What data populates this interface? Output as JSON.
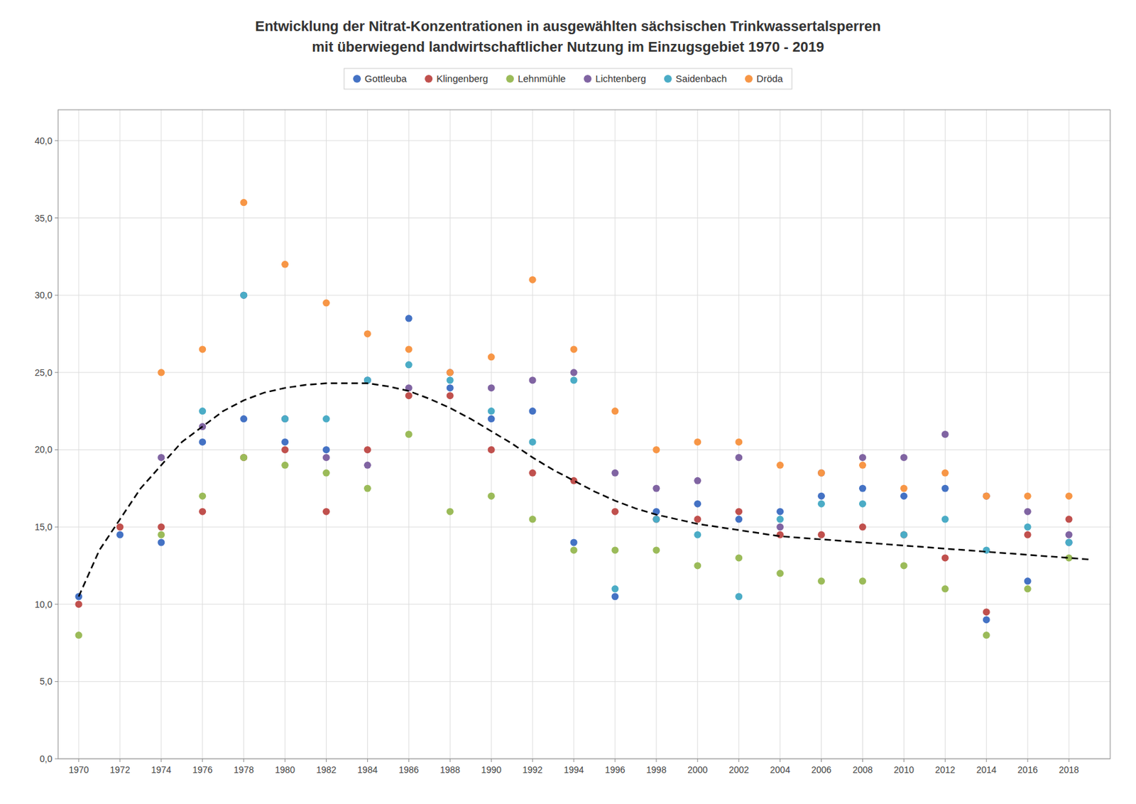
{
  "chart_data": {
    "type": "scatter",
    "title": "Entwicklung der Nitrat-Konzentrationen in ausgewählten sächsischen Trinkwassertalsperren",
    "subtitle": "mit überwiegend landwirtschaftlicher Nutzung im Einzugsgebiet 1970 - 2019",
    "xlim": [
      1969,
      2020
    ],
    "ylim": [
      0,
      42
    ],
    "xticks": [
      1970,
      1972,
      1974,
      1976,
      1978,
      1980,
      1982,
      1984,
      1986,
      1988,
      1990,
      1992,
      1994,
      1996,
      1998,
      2000,
      2002,
      2004,
      2006,
      2008,
      2010,
      2012,
      2014,
      2016,
      2018
    ],
    "yticks": [
      {
        "value": 0.0,
        "label": "0,0"
      },
      {
        "value": 5.0,
        "label": "5,0"
      },
      {
        "value": 10.0,
        "label": "10,0"
      },
      {
        "value": 15.0,
        "label": "15,0"
      },
      {
        "value": 20.0,
        "label": "20,0"
      },
      {
        "value": 25.0,
        "label": "25,0"
      },
      {
        "value": 30.0,
        "label": "30,0"
      },
      {
        "value": 35.0,
        "label": "35,0"
      },
      {
        "value": 40.0,
        "label": "40,0"
      }
    ],
    "grid": true,
    "legend": "top",
    "series": [
      {
        "name": "Gottleuba",
        "color": "#4472c4",
        "marker": "circle",
        "x": [
          1970,
          1972,
          1974,
          1976,
          1978,
          1980,
          1982,
          1984,
          1986,
          1988,
          1990,
          1992,
          1994,
          1996,
          1998,
          2000,
          2002,
          2004,
          2006,
          2008,
          2010,
          2012,
          2014,
          2016,
          2018
        ],
        "values": [
          10.5,
          14.5,
          14.0,
          20.5,
          22.0,
          20.5,
          20.0,
          24.5,
          28.5,
          24.0,
          22.0,
          22.5,
          14.0,
          10.5,
          16.0,
          16.5,
          15.5,
          16.0,
          17.0,
          17.5,
          17.0,
          17.5,
          9.0,
          11.5,
          14.0
        ]
      },
      {
        "name": "Klingenberg",
        "color": "#c0504d",
        "marker": "circle",
        "x": [
          1970,
          1972,
          1974,
          1976,
          1978,
          1980,
          1982,
          1984,
          1986,
          1988,
          1990,
          1992,
          1994,
          1996,
          1998,
          2000,
          2002,
          2004,
          2006,
          2008,
          2010,
          2012,
          2014,
          2016,
          2018
        ],
        "values": [
          10.0,
          15.0,
          15.0,
          16.0,
          19.5,
          20.0,
          16.0,
          20.0,
          23.5,
          23.5,
          20.0,
          18.5,
          18.0,
          16.0,
          15.5,
          15.5,
          16.0,
          14.5,
          14.5,
          15.0,
          14.5,
          13.0,
          9.5,
          14.5,
          15.5
        ]
      },
      {
        "name": "Lehnmühle",
        "color": "#9bbb59",
        "marker": "circle",
        "x": [
          1970,
          1974,
          1976,
          1978,
          1980,
          1982,
          1984,
          1986,
          1988,
          1990,
          1992,
          1994,
          1996,
          1998,
          2000,
          2002,
          2004,
          2006,
          2008,
          2010,
          2012,
          2014,
          2016,
          2018
        ],
        "values": [
          8.0,
          14.5,
          17.0,
          19.5,
          19.0,
          18.5,
          17.5,
          21.0,
          16.0,
          17.0,
          15.5,
          13.5,
          13.5,
          13.5,
          12.5,
          13.0,
          12.0,
          11.5,
          11.5,
          12.5,
          11.0,
          8.0,
          11.0,
          13.0
        ]
      },
      {
        "name": "Lichtenberg",
        "color": "#8064a2",
        "marker": "circle",
        "x": [
          1974,
          1976,
          1978,
          1980,
          1982,
          1984,
          1986,
          1988,
          1990,
          1992,
          1994,
          1996,
          1998,
          2000,
          2002,
          2004,
          2006,
          2008,
          2010,
          2012,
          2014,
          2016,
          2018
        ],
        "values": [
          19.5,
          21.5,
          30.0,
          22.0,
          19.5,
          19.0,
          24.0,
          25.0,
          24.0,
          24.5,
          25.0,
          18.5,
          17.5,
          18.0,
          19.5,
          15.0,
          18.5,
          19.5,
          19.5,
          21.0,
          17.0,
          16.0,
          14.5
        ]
      },
      {
        "name": "Saidenbach",
        "color": "#4bacc6",
        "marker": "circle",
        "x": [
          1976,
          1978,
          1980,
          1982,
          1984,
          1986,
          1988,
          1990,
          1992,
          1994,
          1996,
          1998,
          2000,
          2002,
          2004,
          2006,
          2008,
          2010,
          2012,
          2014,
          2016,
          2018
        ],
        "values": [
          22.5,
          30.0,
          22.0,
          22.0,
          24.5,
          25.5,
          24.5,
          22.5,
          20.5,
          24.5,
          11.0,
          15.5,
          14.5,
          10.5,
          15.5,
          16.5,
          16.5,
          14.5,
          15.5,
          13.5,
          15.0,
          14.0
        ]
      },
      {
        "name": "Dröda",
        "color": "#f79646",
        "marker": "circle",
        "x": [
          1974,
          1976,
          1978,
          1980,
          1982,
          1984,
          1986,
          1988,
          1990,
          1992,
          1994,
          1996,
          1998,
          2000,
          2002,
          2004,
          2006,
          2008,
          2010,
          2012,
          2014,
          2016,
          2018
        ],
        "values": [
          25.0,
          26.5,
          36.0,
          32.0,
          29.5,
          27.5,
          26.5,
          25.0,
          26.0,
          31.0,
          26.5,
          22.5,
          20.0,
          20.5,
          20.5,
          19.0,
          18.5,
          19.0,
          17.5,
          18.5,
          17.0,
          17.0,
          17.0
        ]
      },
      {
        "type": "line",
        "color": "#000000",
        "line_style": "dashed",
        "x": [
          1970,
          1971,
          1972,
          1973,
          1974,
          1975,
          1976,
          1977,
          1978,
          1979,
          1980,
          1981,
          1982,
          1983,
          1984,
          1985,
          1986,
          1987,
          1988,
          1989,
          1990,
          1991,
          1992,
          1993,
          1994,
          1995,
          1996,
          1997,
          1998,
          1999,
          2000,
          2001,
          2002,
          2003,
          2004,
          2005,
          2006,
          2007,
          2008,
          2009,
          2010,
          2011,
          2012,
          2013,
          2014,
          2015,
          2016,
          2017,
          2018,
          2019
        ],
        "values": [
          10.5,
          13.5,
          15.5,
          17.5,
          19.0,
          20.5,
          21.5,
          22.5,
          23.2,
          23.7,
          24.0,
          24.2,
          24.3,
          24.3,
          24.3,
          24.1,
          23.8,
          23.3,
          22.7,
          22.0,
          21.2,
          20.4,
          19.5,
          18.7,
          18.0,
          17.3,
          16.7,
          16.2,
          15.8,
          15.5,
          15.2,
          15.0,
          14.8,
          14.6,
          14.4,
          14.3,
          14.2,
          14.1,
          14.0,
          13.9,
          13.8,
          13.7,
          13.6,
          13.5,
          13.4,
          13.3,
          13.2,
          13.1,
          13.0,
          12.9
        ]
      }
    ]
  }
}
